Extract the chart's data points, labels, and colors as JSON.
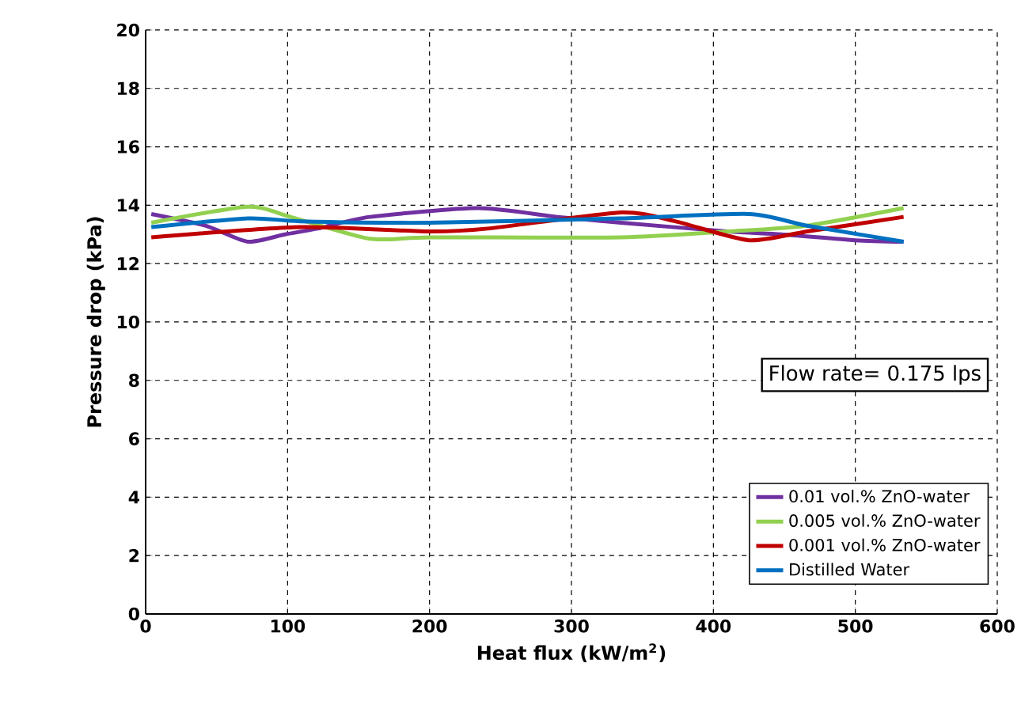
{
  "chart_data": {
    "type": "line",
    "xlabel": "Heat flux (kW/m$^{2}$)",
    "ylabel": "Pressure drop (kPa)",
    "annotations": [
      "Flow rate= 0.175 lps"
    ],
    "xlim": [
      0,
      600
    ],
    "xticks": [
      0,
      100,
      200,
      300,
      400,
      500,
      600
    ],
    "ylim": [
      0,
      20
    ],
    "yticks": [
      0,
      2,
      4,
      6,
      8,
      10,
      12,
      14,
      16,
      18,
      20
    ],
    "grid": true,
    "legend": "bottom right",
    "line_style": "solid",
    "marker": "none",
    "series": [
      {
        "name": "0.01 vol.% ZnO-water",
        "color": "#7030a0",
        "x": [
          4,
          42,
          72,
          98,
          121,
          158,
          234,
          290,
          335,
          410,
          448,
          500,
          534
        ],
        "values": [
          13.7,
          13.3,
          12.75,
          13.0,
          13.2,
          13.6,
          13.9,
          13.6,
          13.4,
          13.1,
          13.0,
          12.8,
          12.75
        ]
      },
      {
        "name": "0.005 vol.% ZnO-water",
        "color": "#92d050",
        "x": [
          4,
          72,
          102,
          158,
          200,
          335,
          410,
          466,
          534
        ],
        "values": [
          13.4,
          13.95,
          13.6,
          12.85,
          12.9,
          12.9,
          13.1,
          13.3,
          13.9
        ]
      },
      {
        "name": "0.001 vol.% ZnO-water",
        "color": "#c00000",
        "x": [
          4,
          109,
          200,
          241,
          335,
          373,
          425,
          466,
          534
        ],
        "values": [
          12.9,
          13.25,
          13.1,
          13.2,
          13.75,
          13.45,
          12.8,
          13.1,
          13.6
        ]
      },
      {
        "name": "Distilled Water",
        "color": "#0070c0",
        "x": [
          4,
          72,
          109,
          200,
          335,
          425,
          466,
          534
        ],
        "values": [
          13.25,
          13.55,
          13.45,
          13.4,
          13.55,
          13.7,
          13.3,
          12.75
        ]
      }
    ]
  }
}
